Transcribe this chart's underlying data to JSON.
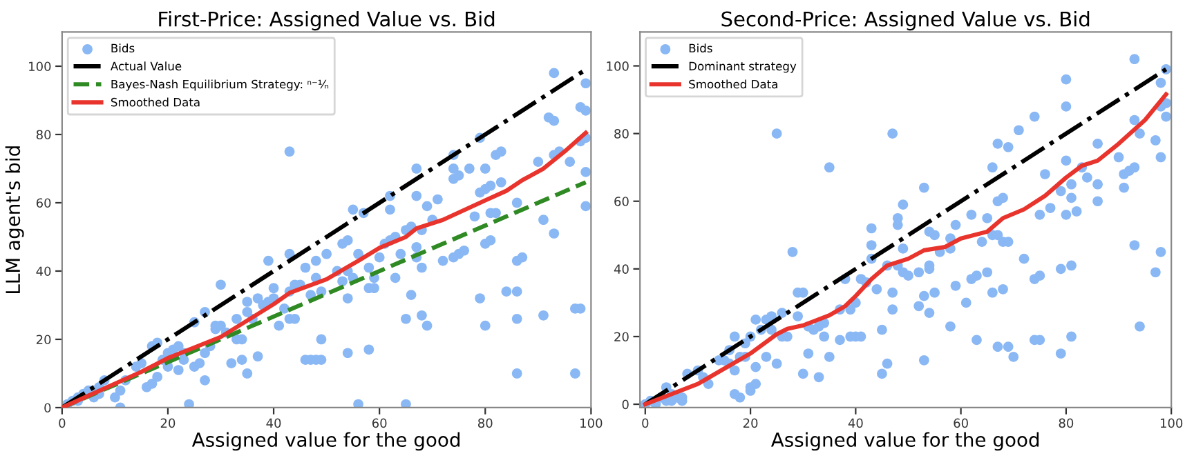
{
  "chart_data": [
    {
      "type": "scatter",
      "title": "First-Price: Assigned Value vs. Bid",
      "xlabel": "Assigned value for the good",
      "ylabel": "LLM agent's bid",
      "xlim": [
        0,
        100
      ],
      "xticks": [
        0,
        20,
        40,
        60,
        80,
        100
      ],
      "ylim": [
        0,
        110
      ],
      "yticks": [
        0,
        20,
        40,
        60,
        80,
        100
      ],
      "grid": false,
      "legend": "top left",
      "series": [
        {
          "name": "Bids",
          "marker": "circle",
          "color": "#8ab8f4",
          "x": [
            1,
            2,
            3,
            3,
            4,
            5,
            6,
            6,
            7,
            7,
            8,
            10,
            11,
            11,
            12,
            14,
            15,
            16,
            17,
            17,
            18,
            18,
            19,
            20,
            20,
            21,
            22,
            22,
            23,
            23,
            24,
            25,
            25,
            26,
            27,
            27,
            27,
            28,
            29,
            29,
            30,
            30,
            31,
            32,
            33,
            33,
            34,
            34,
            35,
            35,
            35,
            36,
            37,
            37,
            38,
            39,
            39,
            40,
            40,
            41,
            42,
            43,
            43,
            43,
            43,
            44,
            44,
            45,
            46,
            46,
            47,
            47,
            48,
            48,
            48,
            49,
            49,
            49,
            50,
            52,
            53,
            53,
            54,
            54,
            54,
            54,
            55,
            55,
            56,
            56,
            57,
            58,
            58,
            58,
            59,
            59,
            60,
            61,
            62,
            62,
            62,
            63,
            63,
            64,
            65,
            65,
            65,
            66,
            66,
            67,
            67,
            67,
            67,
            68,
            68,
            68,
            69,
            69,
            70,
            71,
            72,
            74,
            74,
            74,
            74,
            75,
            75,
            76,
            77,
            78,
            79,
            79,
            79,
            80,
            80,
            80,
            80,
            81,
            81,
            81,
            82,
            82,
            83,
            83,
            84,
            86,
            86,
            86,
            86,
            86,
            87,
            90,
            91,
            91,
            92,
            93,
            93,
            93,
            93,
            94,
            96,
            97,
            97,
            98,
            98,
            98,
            99,
            99,
            99,
            99,
            99
          ],
          "values": [
            1,
            2,
            2,
            3,
            4,
            5,
            3,
            5,
            4,
            6,
            8,
            3,
            5,
            0,
            8,
            12,
            13,
            6,
            7,
            18,
            19,
            9,
            14,
            12,
            16,
            17,
            11,
            18,
            14,
            16,
            1,
            12,
            25,
            13,
            8,
            16,
            28,
            18,
            23,
            24,
            24,
            36,
            22,
            13,
            26,
            20,
            20,
            14,
            10,
            31,
            28,
            26,
            32,
            15,
            30,
            31,
            43,
            32,
            35,
            24,
            29,
            26,
            34,
            45,
            75,
            26,
            36,
            36,
            41,
            14,
            14,
            33,
            14,
            38,
            43,
            14,
            34,
            20,
            45,
            40,
            37,
            48,
            49,
            32,
            16,
            40,
            38,
            58,
            1,
            45,
            57,
            41,
            35,
            17,
            38,
            35,
            44,
            48,
            58,
            49,
            62,
            50,
            38,
            45,
            1,
            26,
            52,
            33,
            53,
            62,
            70,
            47,
            44,
            41,
            27,
            52,
            24,
            59,
            55,
            61,
            43,
            44,
            67,
            70,
            74,
            68,
            45,
            46,
            70,
            56,
            63,
            79,
            32,
            24,
            48,
            64,
            70,
            65,
            57,
            49,
            57,
            74,
            75,
            66,
            34,
            10,
            26,
            34,
            43,
            60,
            44,
            72,
            27,
            55,
            85,
            84,
            51,
            98,
            74,
            75,
            72,
            10,
            29,
            29,
            78,
            88,
            87,
            69,
            59,
            79,
            95
          ]
        },
        {
          "name": "Actual Value",
          "type": "line",
          "line_style": "dashdot",
          "color": "#000000",
          "x": [
            0,
            99
          ],
          "values": [
            0,
            99
          ]
        },
        {
          "name": "Bayes-Nash Equilibrium Strategy: ⁿ⁻¹⁄ₙ",
          "type": "line",
          "line_style": "dashed",
          "color": "#2f8a23",
          "x": [
            0,
            99
          ],
          "values": [
            0,
            66
          ]
        },
        {
          "name": "Smoothed Data",
          "type": "line",
          "line_style": "solid",
          "color": "#e8342c",
          "x": [
            0,
            5,
            10,
            15,
            20,
            30,
            40,
            43,
            50,
            56,
            60,
            65,
            67,
            72,
            80,
            84,
            87,
            91,
            95,
            99
          ],
          "values": [
            0,
            3.5,
            7,
            10.5,
            14.5,
            20.7,
            30.3,
            33.6,
            37.6,
            43,
            46.8,
            50,
            52.5,
            55,
            60.7,
            63.5,
            66.6,
            70,
            75,
            80.5
          ]
        }
      ]
    },
    {
      "type": "scatter",
      "title": "Second-Price: Assigned Value vs. Bid",
      "xlabel": "Assigned value for the good",
      "xlim": [
        -1,
        100
      ],
      "xticks": [
        0,
        20,
        40,
        60,
        80,
        100
      ],
      "ylim": [
        -1,
        110
      ],
      "yticks": [
        0,
        20,
        40,
        60,
        80,
        100
      ],
      "grid": false,
      "legend": "top left",
      "series": [
        {
          "name": "Bids",
          "marker": "circle",
          "color": "#8ab8f4",
          "x": [
            0,
            1,
            2,
            3,
            4,
            4,
            5,
            5,
            6,
            7,
            7,
            8,
            10,
            11,
            12,
            14,
            15,
            16,
            16,
            17,
            17,
            17,
            18,
            18,
            19,
            19,
            20,
            20,
            20,
            21,
            21,
            21,
            22,
            23,
            23,
            24,
            24,
            25,
            25,
            26,
            26,
            27,
            28,
            29,
            29,
            30,
            30,
            31,
            31,
            32,
            33,
            33,
            34,
            34,
            35,
            35,
            37,
            37,
            38,
            39,
            39,
            40,
            40,
            41,
            41,
            42,
            43,
            43,
            43,
            44,
            45,
            45,
            46,
            46,
            47,
            47,
            47,
            48,
            48,
            48,
            49,
            49,
            49,
            50,
            52,
            52,
            53,
            53,
            53,
            54,
            54,
            54,
            54,
            55,
            55,
            56,
            58,
            58,
            58,
            59,
            59,
            61,
            62,
            62,
            63,
            63,
            64,
            65,
            65,
            66,
            66,
            66,
            67,
            67,
            67,
            67,
            68,
            68,
            68,
            69,
            69,
            69,
            70,
            71,
            72,
            74,
            74,
            74,
            75,
            75,
            75,
            76,
            77,
            79,
            79,
            79,
            80,
            80,
            80,
            80,
            81,
            81,
            81,
            81,
            82,
            83,
            84,
            86,
            86,
            86,
            90,
            91,
            91,
            92,
            93,
            93,
            93,
            93,
            94,
            94,
            97,
            97,
            98,
            98,
            98,
            98,
            99,
            99,
            99
          ],
          "values": [
            0,
            1,
            0,
            2,
            5,
            1,
            1,
            3,
            2,
            1,
            2,
            9,
            10,
            8,
            6,
            13,
            13,
            12,
            16,
            20,
            10,
            3,
            2,
            14,
            14,
            18,
            20,
            5,
            4,
            11,
            6,
            25,
            22,
            25,
            14,
            26,
            22,
            12,
            80,
            20,
            27,
            20,
            45,
            26,
            33,
            33,
            9,
            15,
            23,
            22,
            8,
            23,
            20,
            24,
            14,
            70,
            19,
            28,
            37,
            28,
            20,
            30,
            20,
            20,
            37,
            36,
            43,
            47,
            52,
            34,
            9,
            22,
            12,
            41,
            28,
            33,
            80,
            41,
            53,
            55,
            59,
            46,
            39,
            38,
            29,
            39,
            13,
            32,
            64,
            27,
            40,
            41,
            51,
            50,
            33,
            45,
            23,
            46,
            49,
            35,
            53,
            30,
            37,
            56,
            38,
            19,
            48,
            39,
            55,
            33,
            50,
            70,
            77,
            60,
            50,
            17,
            61,
            48,
            34,
            48,
            76,
            17,
            14,
            81,
            43,
            37,
            19,
            85,
            19,
            38,
            56,
            68,
            58,
            63,
            40,
            15,
            72,
            56,
            88,
            96,
            41,
            20,
            61,
            65,
            57,
            70,
            67,
            60,
            65,
            77,
            73,
            68,
            64,
            69,
            70,
            47,
            84,
            102,
            80,
            23,
            78,
            39,
            45,
            73,
            95,
            88,
            85,
            89,
            99
          ]
        },
        {
          "name": "Dominant strategy",
          "type": "line",
          "line_style": "dashdot",
          "color": "#000000",
          "x": [
            0,
            99
          ],
          "values": [
            0,
            99
          ]
        },
        {
          "name": "Smoothed Data",
          "type": "line",
          "line_style": "solid",
          "color": "#e8342c",
          "x": [
            0,
            10,
            20,
            25,
            27,
            30,
            35,
            38,
            40,
            43,
            46,
            50,
            53,
            57,
            60,
            65,
            68,
            72,
            76,
            80,
            83,
            86,
            90,
            95,
            99
          ],
          "values": [
            0,
            6,
            15,
            20.7,
            22.3,
            23.3,
            26.3,
            29,
            32,
            37,
            41,
            43,
            45.5,
            46.5,
            49,
            51,
            55,
            57.6,
            61.6,
            67,
            70.5,
            72,
            77,
            84,
            91.6
          ]
        }
      ]
    }
  ]
}
